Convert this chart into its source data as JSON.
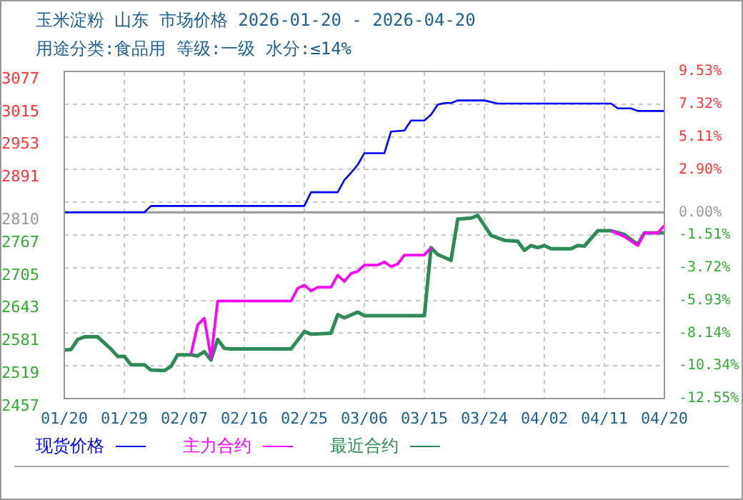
{
  "chart_data": {
    "type": "line",
    "title": "玉米淀粉 山东 市场价格 2026-01-20 - 2026-04-20",
    "subtitle": "用途分类:食品用 等级:一级 水分:≤14%",
    "xlim": [
      "--01-20",
      "--04-20"
    ],
    "xticks": [
      {
        "value": "--01-20",
        "label": "01/20"
      },
      {
        "value": "--01-29",
        "label": "01/29"
      },
      {
        "value": "--02-07",
        "label": "02/07"
      },
      {
        "value": "--02-16",
        "label": "02/16"
      },
      {
        "value": "--02-25",
        "label": "02/25"
      },
      {
        "value": "--03-06",
        "label": "03/06"
      },
      {
        "value": "--03-15",
        "label": "03/15"
      },
      {
        "value": "--03-24",
        "label": "03/24"
      },
      {
        "value": "--04-02",
        "label": "04/02"
      },
      {
        "value": "--04-11",
        "label": "04/11"
      },
      {
        "value": "--04-20",
        "label": "04/20"
      }
    ],
    "ylim": [
      2457,
      3077
    ],
    "yticks": [
      2457,
      2519,
      2581,
      2643,
      2705,
      2767,
      2810,
      {
        "value": 2829,
        "label": null
      },
      2891,
      2953,
      3015,
      3077
    ],
    "y2lim": [
      -12.55,
      9.53
    ],
    "y2ticks": [
      {
        "value": -12.55,
        "label": "-12.55%"
      },
      {
        "value": -10.34,
        "label": "-10.34%"
      },
      {
        "value": -8.14,
        "label": "-8.14%"
      },
      {
        "value": -5.93,
        "label": "-5.93%"
      },
      {
        "value": -3.72,
        "label": "-3.72%"
      },
      {
        "value": -1.51,
        "label": "-1.51%"
      },
      {
        "value": 0,
        "label": "0.00%"
      },
      {
        "value": 2.9,
        "label": "2.90%"
      },
      {
        "value": 5.11,
        "label": "5.11%"
      },
      {
        "value": 7.32,
        "label": "7.32%"
      },
      {
        "value": 9.53,
        "label": "9.53%"
      }
    ],
    "ref_lines": [
      {
        "axis": "y",
        "value": 2810,
        "color": "#999999"
      }
    ],
    "grid": true,
    "legend": "bottom",
    "marker": "none",
    "line_style": "solid",
    "series": [
      {
        "name": "现货价格",
        "color": "#0000ff",
        "x": [
          "--01-20",
          "--02-01",
          "--02-02",
          "--02-25",
          "--02-26",
          "--03-02",
          "--03-03",
          "--03-04",
          "--03-05",
          "--03-06",
          "--03-09",
          "--03-10",
          "--03-12",
          "--03-13",
          "--03-15",
          "--03-16",
          "--03-17",
          "--03-18",
          "--03-19",
          "--03-20",
          "--03-24",
          "--03-26",
          "--04-12",
          "--04-13",
          "--04-15",
          "--04-16",
          "--04-20"
        ],
        "values": [
          2810,
          2810,
          2822,
          2822,
          2848,
          2848,
          2871,
          2885,
          2900,
          2922,
          2922,
          2963,
          2965,
          2984,
          2984,
          2995,
          3014,
          3017,
          3017,
          3022,
          3022,
          3016,
          3016,
          3007,
          3007,
          3002,
          3002
        ]
      },
      {
        "name": "主力合约",
        "color": "#ff00ff",
        "x": [
          "--02-08",
          "--02-09",
          "--02-10",
          "--02-11",
          "--02-12",
          "--02-23",
          "--02-24",
          "--02-25",
          "--02-26",
          "--02-27",
          "--03-01",
          "--03-02",
          "--03-03",
          "--03-04",
          "--03-05",
          "--03-06",
          "--03-08",
          "--03-09",
          "--03-10",
          "--03-11",
          "--03-12",
          "--03-15",
          "--03-16",
          "--03-17",
          "--04-12",
          "--04-14",
          "--04-16",
          "--04-17",
          "--04-19",
          "--04-20"
        ],
        "values": [
          2541,
          2597,
          2609,
          2534,
          2642,
          2642,
          2666,
          2672,
          2661,
          2668,
          2668,
          2691,
          2679,
          2694,
          2698,
          2710,
          2710,
          2716,
          2707,
          2712,
          2729,
          2729,
          2743,
          null,
          2775,
          2764,
          2747,
          2771,
          2771,
          2785
        ]
      },
      {
        "name": "最近合约",
        "color": "#2e8b57",
        "x": [
          "--01-20",
          "--01-21",
          "--01-22",
          "--01-23",
          "--01-25",
          "--01-27",
          "--01-28",
          "--01-29",
          "--01-30",
          "--02-01",
          "--02-02",
          "--02-04",
          "--02-05",
          "--02-06",
          "--02-08",
          "--02-09",
          "--02-10",
          "--02-11",
          "--02-12",
          "--02-13",
          "--02-14",
          "--02-23",
          "--02-25",
          "--02-26",
          "--03-01",
          "--03-02",
          "--03-03",
          "--03-05",
          "--03-06",
          "--03-15",
          "--03-16",
          "--03-17",
          "--03-19",
          "--03-20",
          "--03-22",
          "--03-23",
          "--03-25",
          "--03-27",
          "--03-29",
          "--03-30",
          "--03-31",
          "--04-01",
          "--04-02",
          "--04-03",
          "--04-06",
          "--04-07",
          "--04-08",
          "--04-10",
          "--04-12",
          "--04-14",
          "--04-16",
          "--04-17",
          "--04-20"
        ],
        "values": [
          2549,
          2550,
          2569,
          2574,
          2574,
          2551,
          2537,
          2537,
          2521,
          2521,
          2511,
          2510,
          2518,
          2540,
          2540,
          2538,
          2546,
          2530,
          2569,
          2552,
          2551,
          2551,
          2584,
          2579,
          2581,
          2616,
          2610,
          2621,
          2614,
          2614,
          2743,
          2730,
          2719,
          2797,
          2799,
          2804,
          2766,
          2757,
          2755,
          2738,
          2747,
          2743,
          2747,
          2741,
          2741,
          2747,
          2746,
          2775,
          2775,
          2768,
          2749,
          2771,
          2771
        ]
      }
    ]
  }
}
